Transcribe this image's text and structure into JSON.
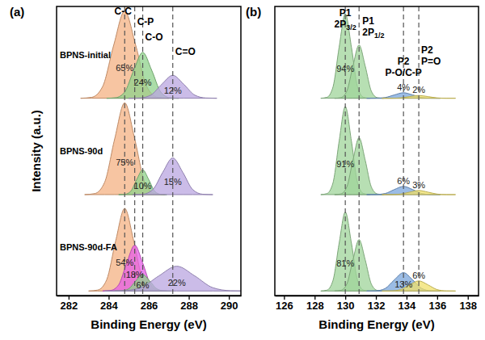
{
  "chart_data": [
    {
      "type": "area",
      "title": "(a)",
      "xlabel": "Binding Energy (eV)",
      "ylabel": "Intensity (a.u.)",
      "xlim": [
        281.4,
        290.6
      ],
      "xticks": [
        282,
        284,
        286,
        288,
        290
      ],
      "ylim": [
        -5,
        100
      ],
      "tick_labels": "x",
      "peak_lines": [
        {
          "x": 284.8,
          "label": [
            "C-C"
          ]
        },
        {
          "x": 285.3,
          "label": [
            "C-P"
          ]
        },
        {
          "x": 285.7,
          "label": [
            "C-O"
          ]
        },
        {
          "x": 287.2,
          "label": [
            "C=O"
          ]
        }
      ],
      "spectra": [
        {
          "name": "BPNS-initial",
          "series": [
            {
              "color": "#f4b183",
              "annotation": "65%",
              "x": [
                282.6,
                283.15,
                283.7,
                284.25,
                284.8,
                285.35,
                285.9,
                286.45,
                287.0
              ],
              "values": [
                0,
                1.0,
                12.8,
                57.7,
                95,
                57.7,
                12.8,
                1.0,
                0
              ]
            },
            {
              "color": "#8fd18b",
              "annotation": "24%",
              "x": [
                283.9,
                284.35,
                284.8,
                285.25,
                285.7,
                286.15,
                286.6,
                287.05,
                287.5
              ],
              "values": [
                0,
                0.6,
                6.8,
                30.4,
                50,
                30.4,
                6.8,
                0.6,
                0
              ]
            },
            {
              "color": "#b9a6e0",
              "annotation": "12%",
              "x": [
                285.0,
                285.55,
                286.1,
                286.65,
                287.2,
                287.75,
                288.3,
                288.85,
                289.4
              ],
              "values": [
                0,
                0.3,
                3.4,
                15.2,
                25,
                15.2,
                3.4,
                0.3,
                0
              ]
            }
          ]
        },
        {
          "name": "BPNS-90d",
          "series": [
            {
              "color": "#f4b183",
              "annotation": "75%",
              "x": [
                282.8,
                283.3,
                283.8,
                284.3,
                284.8,
                285.3,
                285.8,
                286.3,
                286.8
              ],
              "values": [
                0,
                1.1,
                13.5,
                60.7,
                100,
                60.7,
                13.5,
                1.1,
                0
              ]
            },
            {
              "color": "#8fd18b",
              "annotation": "10%",
              "x": [
                284.5,
                284.8,
                285.1,
                285.4,
                285.7,
                286.0,
                286.3,
                286.6,
                286.9
              ],
              "values": [
                0,
                0.3,
                3.6,
                16.4,
                27,
                16.4,
                3.6,
                0.3,
                0
              ]
            },
            {
              "color": "#b9a6e0",
              "annotation": "15%",
              "x": [
                285.2,
                285.7,
                286.2,
                286.7,
                287.2,
                287.7,
                288.2,
                288.7,
                289.2
              ],
              "values": [
                0,
                0.4,
                5.4,
                24.3,
                40,
                24.3,
                5.4,
                0.4,
                0
              ]
            }
          ]
        },
        {
          "name": "BPNS-90d-FA",
          "series": [
            {
              "color": "#f4b183",
              "annotation": "54%",
              "x": [
                283.0,
                283.45,
                283.9,
                284.35,
                284.8,
                285.25,
                285.7,
                286.15,
                286.6
              ],
              "values": [
                0,
                1.0,
                12.2,
                54.6,
                90,
                54.6,
                12.2,
                1.0,
                0
              ]
            },
            {
              "color": "#e65ce6",
              "annotation": "18%",
              "x": [
                283.7,
                284.1,
                284.5,
                284.9,
                285.3,
                285.7,
                286.1,
                286.5,
                286.9
              ],
              "values": [
                0,
                0.6,
                6.8,
                30.4,
                50,
                30.4,
                6.8,
                0.6,
                0
              ]
            },
            {
              "color": "#8fd18b",
              "annotation": "6%",
              "x": [
                284.3,
                284.65,
                285.0,
                285.35,
                285.7,
                286.05,
                286.4,
                286.75,
                287.1
              ],
              "values": [
                0,
                0.2,
                2.4,
                10.9,
                18,
                10.9,
                2.4,
                0.2,
                0
              ]
            },
            {
              "color": "#b9a6e0",
              "annotation": "22%",
              "x": [
                283.8,
                284.7,
                285.6,
                286.5,
                287.4,
                288.3,
                289.2,
                290.1,
                291.0
              ],
              "values": [
                0,
                0.3,
                3.6,
                16.4,
                27,
                16.4,
                3.6,
                0.3,
                0
              ]
            }
          ]
        }
      ]
    },
    {
      "type": "area",
      "title": "(b)",
      "xlabel": "Binding Energy (eV)",
      "xlim": [
        125.4,
        138.7
      ],
      "xticks": [
        126,
        128,
        130,
        132,
        134,
        136,
        138
      ],
      "ylim": [
        -5,
        100
      ],
      "tick_labels": "x",
      "peak_lines": [
        {
          "x": 130.0,
          "label": [
            "P1",
            "2P3/2"
          ]
        },
        {
          "x": 130.9,
          "label": [
            "P1",
            "2P1/2"
          ]
        },
        {
          "x": 133.8,
          "label": [
            "P2",
            "P-O/C-P"
          ]
        },
        {
          "x": 134.8,
          "label": [
            "P2",
            "P=O"
          ]
        }
      ],
      "spectra": [
        {
          "series": [
            {
              "color": "#9fd49a",
              "annotation": "94%",
              "x": [
                128.4,
                128.8,
                129.2,
                129.6,
                130.0,
                130.4,
                130.8,
                131.2,
                131.6
              ],
              "values": [
                0,
                1.0,
                12.4,
                55.8,
                92,
                55.8,
                12.4,
                1.0,
                0
              ]
            },
            {
              "color": "#9fd49a",
              "x": [
                129.3,
                129.7,
                130.1,
                130.5,
                130.9,
                131.3,
                131.7,
                132.1,
                132.5
              ],
              "values": [
                0,
                0.6,
                7.8,
                35.2,
                58,
                35.2,
                7.8,
                0.6,
                0
              ]
            },
            {
              "color": "#7aa6dc",
              "annotation": "4%",
              "x": [
                131.4,
                132.0,
                132.6,
                133.2,
                133.8,
                134.4,
                135.0,
                135.6,
                136.2
              ],
              "values": [
                0,
                0.1,
                0.8,
                3.6,
                6,
                3.6,
                0.8,
                0.1,
                0
              ]
            },
            {
              "color": "#f0e06a",
              "annotation": "2%",
              "x": [
                132.4,
                133.0,
                133.6,
                134.2,
                134.8,
                135.4,
                136.0,
                136.6,
                137.2
              ],
              "values": [
                0,
                0,
                0.4,
                1.8,
                3,
                1.8,
                0.4,
                0,
                0
              ]
            }
          ]
        },
        {
          "series": [
            {
              "color": "#9fd49a",
              "annotation": "91%",
              "x": [
                128.4,
                128.8,
                129.2,
                129.6,
                130.0,
                130.4,
                130.8,
                131.2,
                131.6
              ],
              "values": [
                0,
                1.1,
                13.0,
                58.3,
                96,
                58.3,
                13.0,
                1.1,
                0
              ]
            },
            {
              "color": "#9fd49a",
              "x": [
                129.3,
                129.7,
                130.1,
                130.5,
                130.9,
                131.3,
                131.7,
                132.1,
                132.5
              ],
              "values": [
                0,
                0.7,
                8.4,
                37.6,
                62,
                37.6,
                8.4,
                0.7,
                0
              ]
            },
            {
              "color": "#7aa6dc",
              "annotation": "6%",
              "x": [
                131.4,
                132.0,
                132.6,
                133.2,
                133.8,
                134.4,
                135.0,
                135.6,
                136.2
              ],
              "values": [
                0,
                0.1,
                1.2,
                5.5,
                9,
                5.5,
                1.2,
                0.1,
                0
              ]
            },
            {
              "color": "#f0e06a",
              "annotation": "3%",
              "x": [
                132.4,
                133.0,
                133.6,
                134.2,
                134.8,
                135.4,
                136.0,
                136.6,
                137.2
              ],
              "values": [
                0,
                0,
                0.6,
                2.7,
                4.5,
                2.7,
                0.6,
                0,
                0
              ]
            }
          ]
        },
        {
          "series": [
            {
              "color": "#9fd49a",
              "annotation": "81%",
              "x": [
                128.4,
                128.8,
                129.2,
                129.6,
                130.0,
                130.4,
                130.8,
                131.2,
                131.6
              ],
              "values": [
                0,
                0.9,
                11.6,
                52.2,
                86,
                52.2,
                11.6,
                0.9,
                0
              ]
            },
            {
              "color": "#9fd49a",
              "x": [
                129.3,
                129.7,
                130.1,
                130.5,
                130.9,
                131.3,
                131.7,
                132.1,
                132.5
              ],
              "values": [
                0,
                0.6,
                7.6,
                34.0,
                56,
                34.0,
                7.6,
                0.6,
                0
              ]
            },
            {
              "color": "#7aa6dc",
              "annotation": "13%",
              "x": [
                131.4,
                132.0,
                132.6,
                133.2,
                133.8,
                134.4,
                135.0,
                135.6,
                136.2
              ],
              "values": [
                0,
                0.2,
                2.7,
                12.1,
                20,
                12.1,
                2.7,
                0.2,
                0
              ]
            },
            {
              "color": "#f0e06a",
              "annotation": "6%",
              "x": [
                132.4,
                133.0,
                133.6,
                134.2,
                134.8,
                135.4,
                136.0,
                136.6,
                137.2
              ],
              "values": [
                0,
                0.1,
                1.5,
                6.7,
                11,
                6.7,
                1.5,
                0.1,
                0
              ]
            }
          ]
        }
      ]
    }
  ]
}
